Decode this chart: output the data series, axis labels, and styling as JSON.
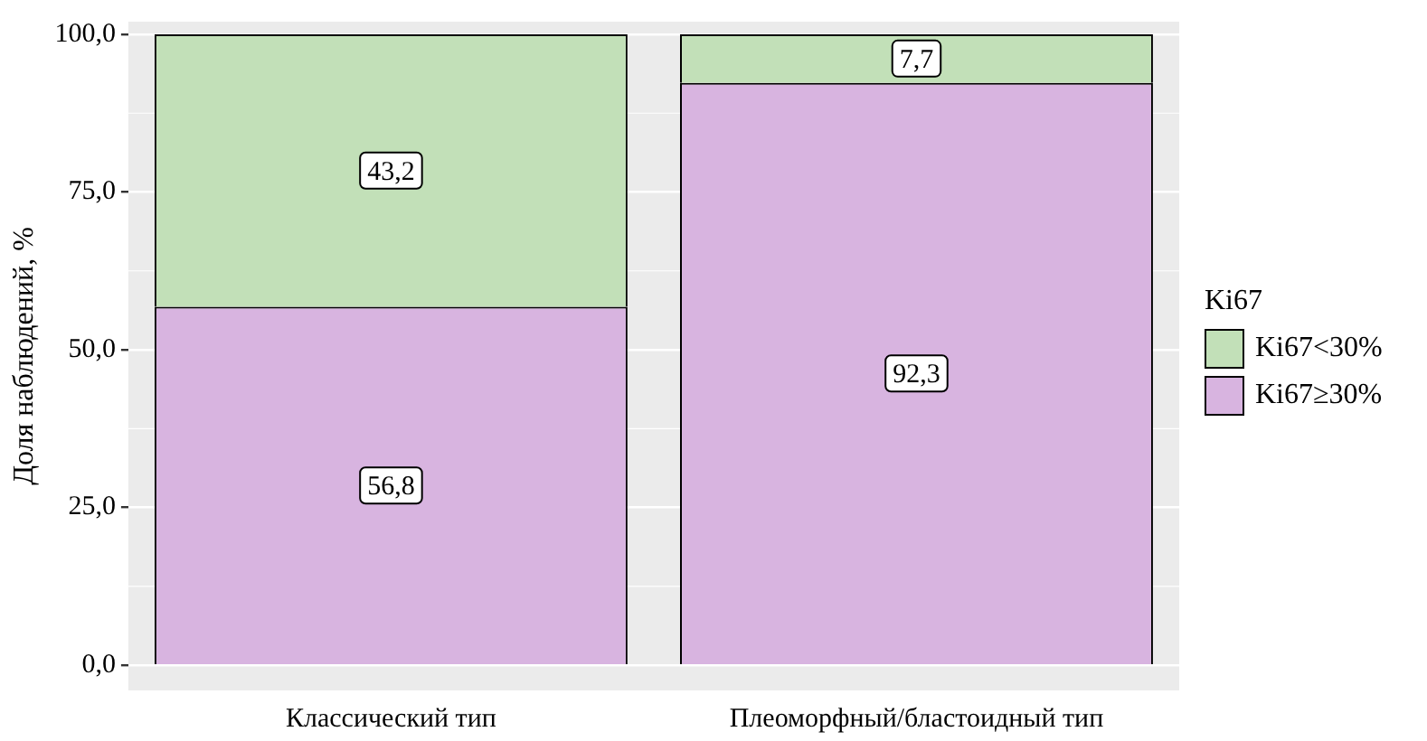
{
  "chart_data": {
    "type": "bar",
    "stacked": true,
    "ylabel": "Доля наблюдений, %",
    "legend_title": "Ki67",
    "legend": "right",
    "grid": "y",
    "categories": [
      "Классический тип",
      "Плеоморфный/бластоидный тип"
    ],
    "series": [
      {
        "name": "Ki67≥30%",
        "color": "#d8b4e0",
        "values": [
          56.8,
          92.3
        ],
        "value_labels": [
          "56,8",
          "92,3"
        ]
      },
      {
        "name": "Ki67<30%",
        "color": "#c2e0b8",
        "values": [
          43.2,
          7.7
        ],
        "value_labels": [
          "43,2",
          "7,7"
        ]
      }
    ],
    "ylim": [
      -4,
      102
    ],
    "yticks": [
      {
        "value": 0,
        "label": "0,0"
      },
      {
        "value": 25,
        "label": "25,0"
      },
      {
        "value": 50,
        "label": "50,0"
      },
      {
        "value": 75,
        "label": "75,0"
      },
      {
        "value": 100,
        "label": "100,0"
      }
    ]
  }
}
